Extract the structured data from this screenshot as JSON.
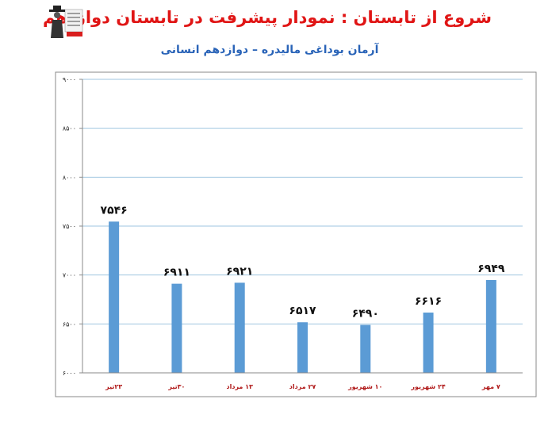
{
  "title": "شروع از تابستان : نمودار پیشرفت در تابستان دوازدهم",
  "subtitle": "آرمان بوداغی مالیدره – دوازدهم انسانی",
  "chart_data": {
    "type": "bar",
    "categories": [
      "۲۳تیر",
      "۳۰تیر",
      "۱۳ مرداد",
      "۲۷ مرداد",
      "۱۰ شهریور",
      "۲۴ شهریور",
      "۷ مهر"
    ],
    "values": [
      7546,
      6911,
      6921,
      6517,
      6490,
      6616,
      6949
    ],
    "value_labels": [
      "۷۵۴۶",
      "۶۹۱۱",
      "۶۹۲۱",
      "۶۵۱۷",
      "۶۴۹۰",
      "۶۶۱۶",
      "۶۹۴۹"
    ],
    "yticks": [
      6000,
      6500,
      7000,
      7500,
      8000,
      8500,
      9000
    ],
    "ytick_labels": [
      "۶۰۰۰",
      "۶۵۰۰",
      "۷۰۰۰",
      "۷۵۰۰",
      "۸۰۰۰",
      "۸۵۰۰",
      "۹۰۰۰"
    ],
    "ylim": [
      6000,
      9000
    ],
    "grid": true,
    "bar_color": "#5b9bd5",
    "grid_color": "#9fc6e0"
  }
}
